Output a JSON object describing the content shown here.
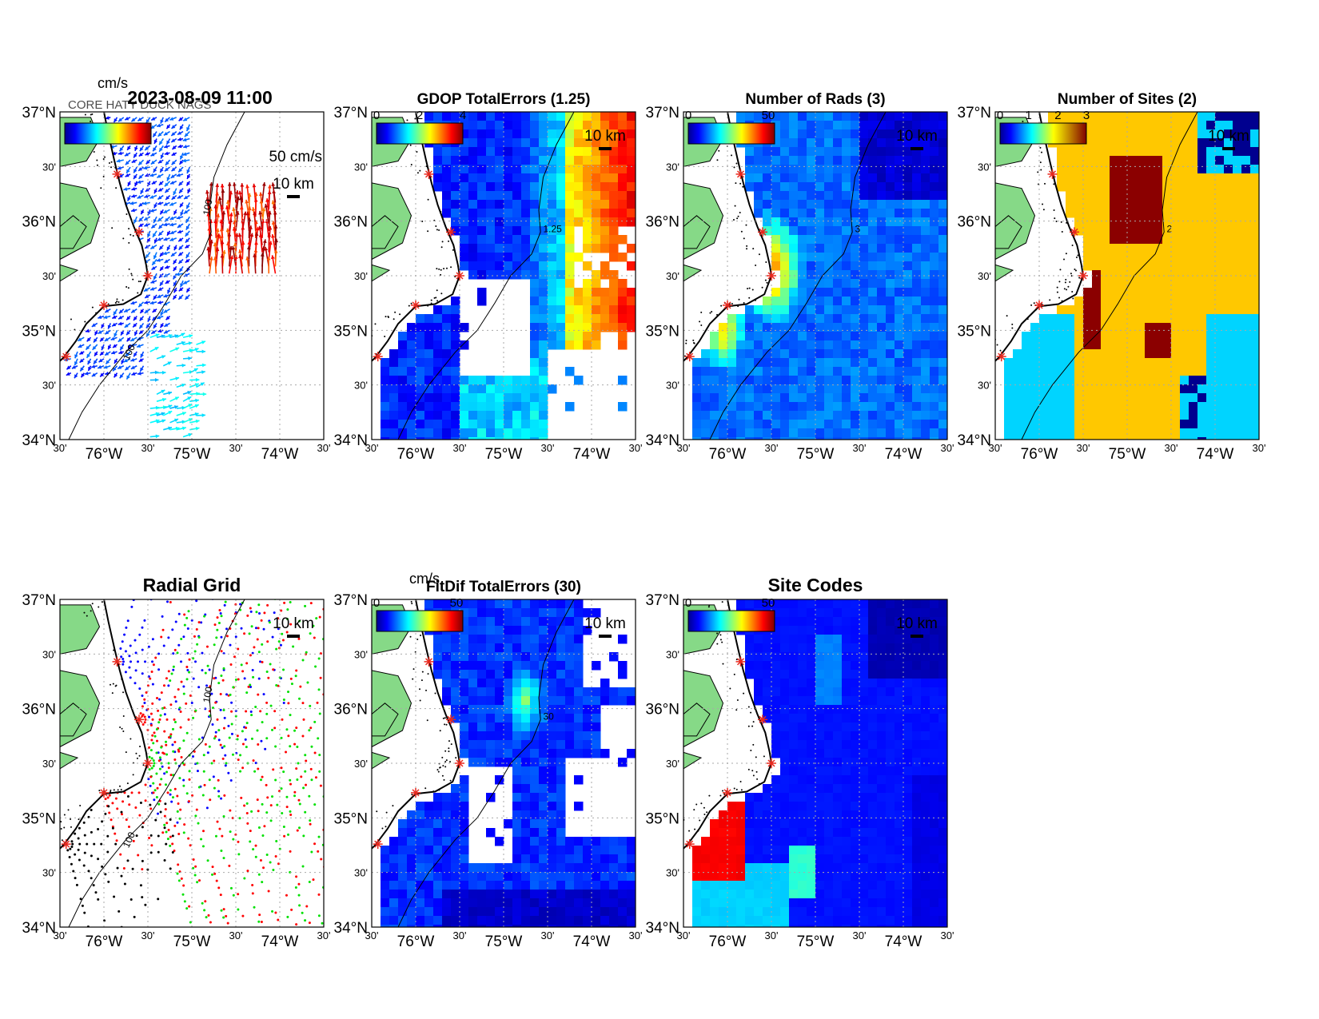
{
  "figure": {
    "timestamp": "2023-08-09 11:00",
    "overlapped_site_labels": "CORE HATY DUCK NAGS"
  },
  "colors": {
    "land": "#86d987",
    "sea_fill_bg": "#ffffff",
    "grid": "#a9a9a9",
    "site_marker": "#e8281e",
    "jet_dark": "#00008f",
    "jet_blue": "#0000ff",
    "jet_cyan": "#00ffff",
    "jet_yellow": "#ffff00",
    "jet_red": "#ff0000",
    "jet_darkred": "#800000"
  },
  "axes": {
    "lat_labels": [
      "37°N",
      "30'",
      "36°N",
      "30'",
      "35°N",
      "30'",
      "34°N"
    ],
    "lat_values": [
      37.0,
      36.5,
      36.0,
      35.5,
      35.0,
      34.5,
      34.0
    ],
    "lon_labels": [
      "30'",
      "76°W",
      "30'",
      "75°W",
      "30'",
      "74°W",
      "30'"
    ],
    "lon_values": [
      -76.5,
      -76.0,
      -75.5,
      -75.0,
      -74.5,
      -74.0,
      -73.5
    ],
    "lat_range": [
      34.0,
      37.0
    ],
    "lon_range": [
      -76.5,
      -73.5
    ],
    "grid": "dotted"
  },
  "sites": [
    {
      "lat": 36.43,
      "lon": -75.85
    },
    {
      "lat": 35.9,
      "lon": -75.6
    },
    {
      "lat": 35.5,
      "lon": -75.5
    },
    {
      "lat": 35.23,
      "lon": -76.0
    },
    {
      "lat": 34.76,
      "lon": -76.43
    }
  ],
  "panels": [
    {
      "id": "total-vectors",
      "title": "",
      "colorbar": {
        "unit": "cm/s",
        "ticks": []
      },
      "vector_scale_label": "50 cm/s",
      "scale_bar": "10 km",
      "isobath_label": "100"
    },
    {
      "id": "gdop-total-errors",
      "title": "GDOP TotalErrors (1.25)",
      "colorbar": {
        "unit": "",
        "ticks": [
          "0",
          "2",
          "4"
        ]
      },
      "scale_bar": "10 km",
      "contour_level": "1.25"
    },
    {
      "id": "number-of-rads",
      "title": "Number of Rads (3)",
      "colorbar": {
        "unit": "",
        "ticks": [
          "0",
          "50"
        ]
      },
      "scale_bar": "10 km",
      "contour_level": "3"
    },
    {
      "id": "number-of-sites",
      "title": "Number of Sites (2)",
      "colorbar": {
        "unit": "",
        "ticks": [
          "0",
          "1",
          "2",
          "3"
        ]
      },
      "scale_bar": "10 km",
      "contour_level": "2"
    },
    {
      "id": "radial-grid",
      "title": "Radial Grid",
      "colorbar": null,
      "scale_bar": "10 km",
      "isobath_label": "100",
      "site_colors": [
        "#0000ff",
        "#ff0000",
        "#00e000",
        "#ff0000",
        "#000000"
      ]
    },
    {
      "id": "fitdif-total-errors",
      "title": "FitDif TotalErrors (30)",
      "colorbar": {
        "unit": "cm/s",
        "ticks": [
          "0",
          "50"
        ]
      },
      "scale_bar": "10 km",
      "contour_level": "30"
    },
    {
      "id": "site-codes",
      "title": "Site Codes",
      "colorbar": {
        "unit": "",
        "ticks": [
          "0",
          "50"
        ]
      },
      "scale_bar": "10 km"
    }
  ]
}
